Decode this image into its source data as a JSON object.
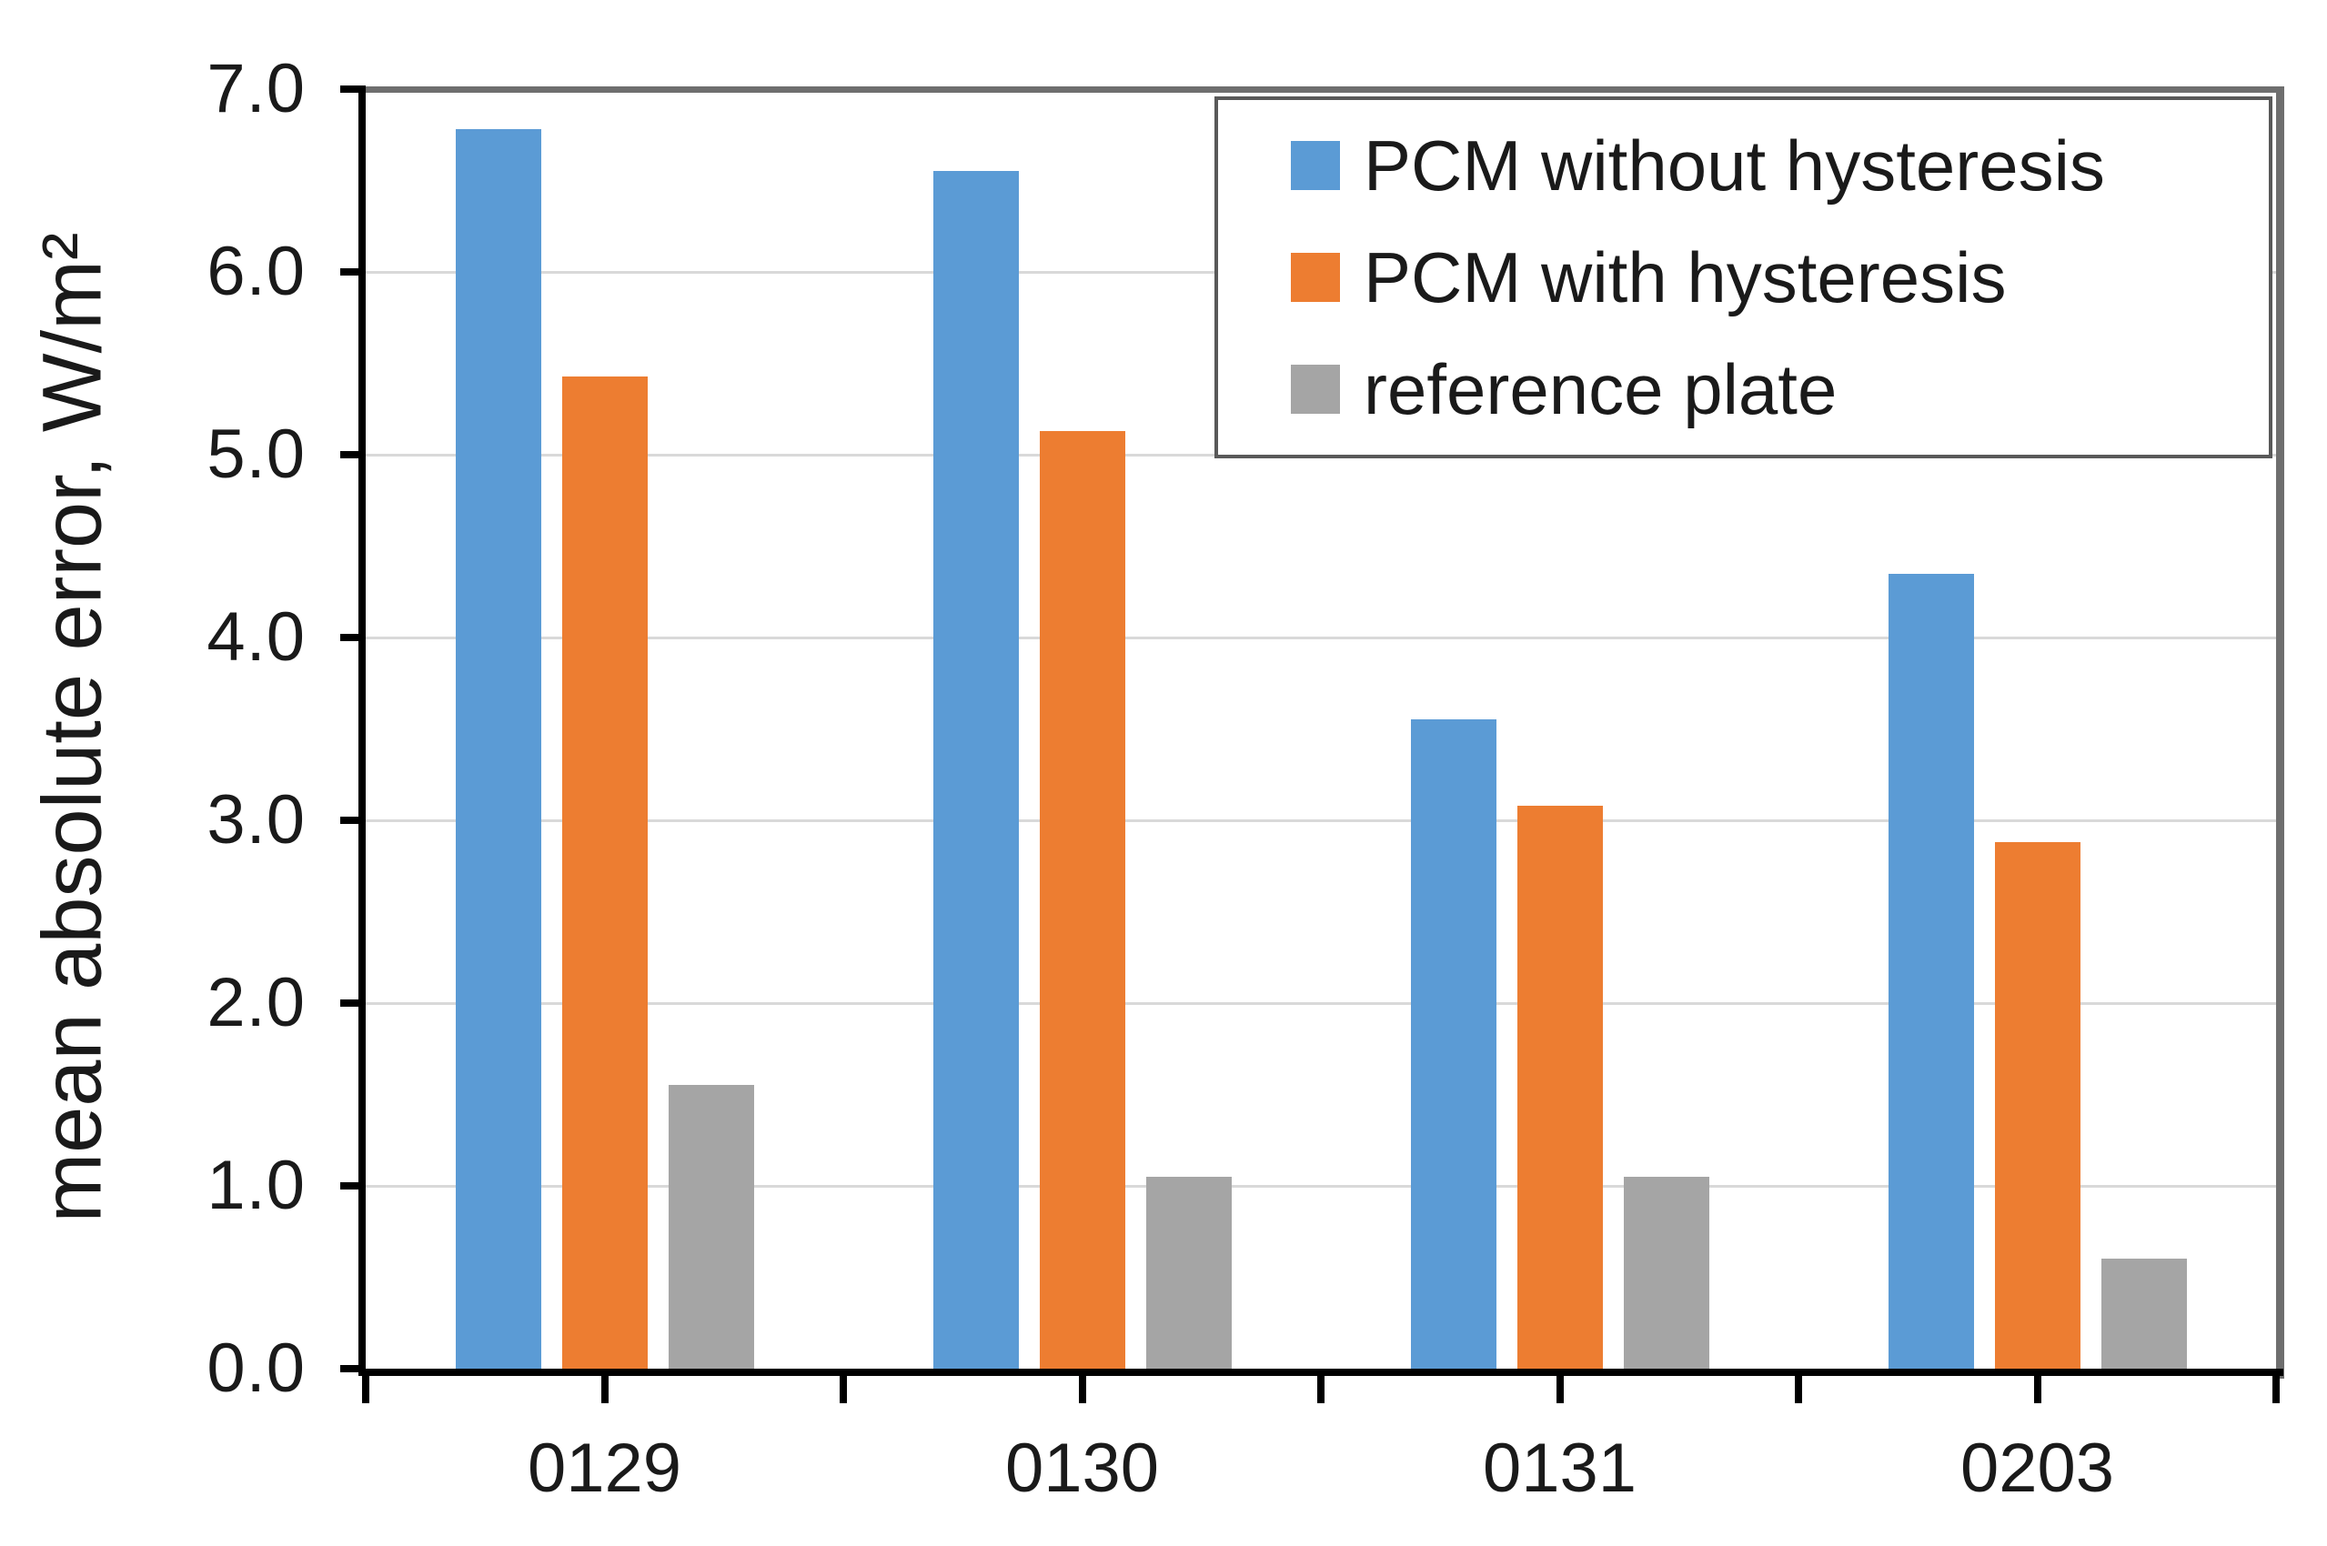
{
  "chart_data": {
    "type": "bar",
    "categories": [
      "0129",
      "0130",
      "0131",
      "0203"
    ],
    "series": [
      {
        "name": "PCM without hysteresis",
        "color": "#5B9BD5",
        "values": [
          6.78,
          6.55,
          3.55,
          4.35
        ]
      },
      {
        "name": "PCM with hysteresis",
        "color": "#ED7D31",
        "values": [
          5.43,
          5.13,
          3.08,
          2.88
        ]
      },
      {
        "name": "reference plate",
        "color": "#A5A5A5",
        "values": [
          1.55,
          1.05,
          1.05,
          0.6
        ]
      }
    ],
    "title": "",
    "xlabel": "",
    "ylabel": "mean absolute error, W/m²",
    "ylim": [
      0.0,
      7.0
    ],
    "ytick_step": 1.0,
    "ytick_labels": [
      "0.0",
      "1.0",
      "2.0",
      "3.0",
      "4.0",
      "5.0",
      "6.0",
      "7.0"
    ],
    "grid": true,
    "legend_position": "top-right",
    "colors": {
      "gridline": "#D9D9D9",
      "axis": "#000000",
      "frame": "#6E6E6E",
      "legend_border": "#595959",
      "text": "#1A1A1A",
      "background": "#FFFFFF"
    }
  }
}
